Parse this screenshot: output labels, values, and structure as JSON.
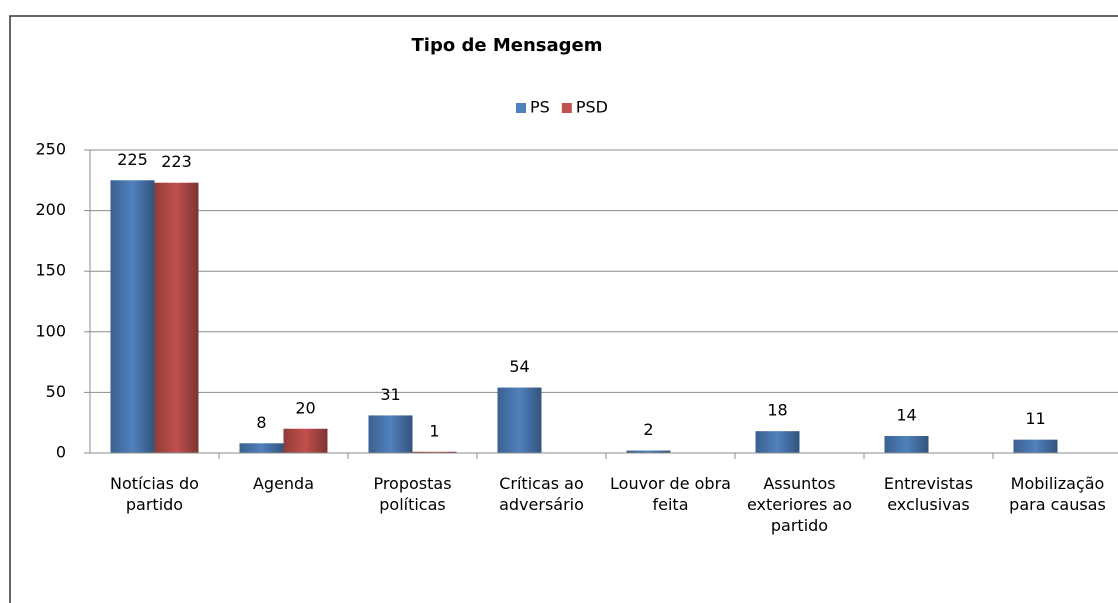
{
  "chart_data": {
    "type": "bar",
    "title": "Tipo de Mensagem",
    "categories": [
      "Notícias do partido",
      "Agenda",
      "Propostas políticas",
      "Críticas ao adversário",
      "Louvor de obra feita",
      "Assuntos exteriores ao partido",
      "Entrevistas exclusivas",
      "Mobilização para causas"
    ],
    "series": [
      {
        "name": "PS",
        "color": "#4f81bd",
        "values": [
          225,
          8,
          31,
          54,
          2,
          18,
          14,
          11
        ]
      },
      {
        "name": "PSD",
        "color": "#c0504d",
        "values": [
          223,
          20,
          1,
          null,
          null,
          null,
          null,
          null
        ]
      }
    ],
    "ylim": [
      0,
      250
    ],
    "yticks": [
      0,
      50,
      100,
      150,
      200,
      250
    ],
    "grid": true,
    "legend": "top"
  }
}
